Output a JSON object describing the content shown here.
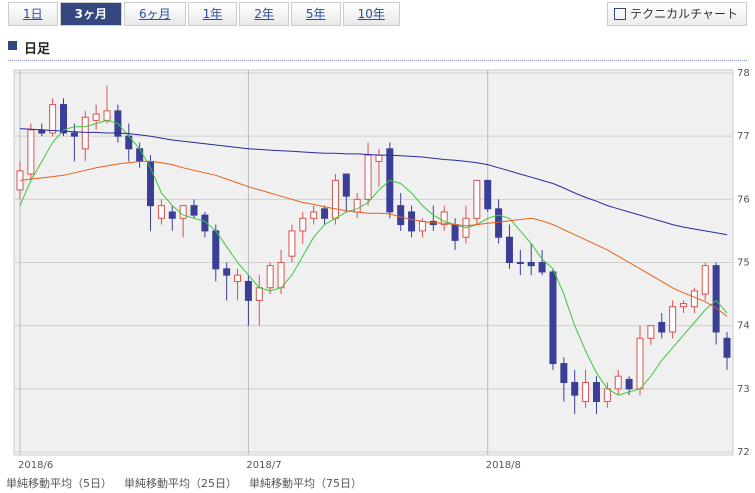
{
  "tabs": [
    "1日",
    "3ヶ月",
    "6ヶ月",
    "1年",
    "2年",
    "5年",
    "10年"
  ],
  "selected_tab": 1,
  "button": "テクニカルチャート",
  "heading": "日足",
  "chart_data": {
    "type": "candlestick",
    "categories": [
      "2018/6",
      null,
      null,
      null,
      null,
      null,
      null,
      null,
      null,
      null,
      null,
      null,
      null,
      null,
      null,
      null,
      null,
      null,
      null,
      null,
      null,
      "2018/7",
      null,
      null,
      null,
      null,
      null,
      null,
      null,
      null,
      null,
      null,
      null,
      null,
      null,
      null,
      null,
      null,
      null,
      null,
      null,
      null,
      null,
      "2018/8",
      null,
      null,
      null,
      null,
      null,
      null,
      null,
      null,
      null,
      null,
      null,
      null,
      null,
      null,
      null,
      null,
      null,
      null,
      null,
      null,
      null,
      null
    ],
    "open": [
      76.15,
      76.4,
      77.1,
      77.05,
      77.5,
      77.05,
      76.8,
      77.25,
      77.25,
      77.4,
      77.0,
      76.8,
      76.6,
      75.7,
      75.8,
      75.7,
      75.9,
      75.75,
      75.5,
      74.9,
      74.7,
      74.7,
      74.4,
      74.6,
      74.6,
      75.1,
      75.5,
      75.7,
      75.85,
      75.7,
      76.4,
      75.8,
      76.0,
      76.6,
      76.8,
      75.9,
      75.8,
      75.5,
      75.65,
      75.6,
      75.6,
      75.4,
      75.7,
      76.3,
      75.85,
      75.4,
      75.0,
      75.0,
      75.0,
      74.85,
      73.4,
      73.1,
      72.8,
      73.1,
      72.8,
      73.0,
      73.15,
      73.0,
      73.8,
      74.05,
      73.9,
      74.3,
      74.3,
      74.5,
      74.95,
      73.8
    ],
    "high": [
      76.6,
      77.2,
      77.2,
      77.6,
      77.6,
      77.2,
      77.4,
      77.5,
      77.8,
      77.5,
      77.2,
      76.9,
      76.7,
      76.0,
      75.9,
      75.9,
      76.0,
      75.8,
      75.6,
      75.0,
      74.9,
      74.8,
      74.8,
      75.0,
      75.2,
      75.6,
      75.8,
      75.9,
      75.9,
      76.4,
      76.4,
      76.1,
      76.9,
      76.8,
      76.9,
      76.1,
      75.9,
      75.7,
      75.9,
      75.9,
      75.7,
      75.9,
      76.3,
      76.3,
      76.0,
      75.6,
      75.2,
      75.3,
      75.2,
      74.9,
      73.5,
      73.3,
      73.3,
      73.2,
      73.1,
      73.3,
      73.2,
      74.0,
      74.0,
      74.2,
      74.4,
      74.4,
      74.6,
      75.0,
      75.0,
      73.9
    ],
    "low": [
      76.0,
      76.3,
      77.0,
      77.0,
      77.0,
      76.6,
      76.6,
      77.1,
      77.2,
      76.9,
      76.6,
      76.5,
      75.5,
      75.6,
      75.5,
      75.4,
      75.7,
      75.4,
      74.7,
      74.4,
      74.4,
      74.0,
      74.0,
      74.5,
      74.5,
      75.0,
      75.3,
      75.6,
      75.6,
      75.6,
      75.8,
      75.7,
      75.9,
      76.2,
      75.7,
      75.5,
      75.4,
      75.4,
      75.5,
      75.5,
      75.2,
      75.3,
      75.6,
      75.8,
      75.3,
      74.9,
      74.8,
      74.8,
      74.8,
      73.3,
      72.8,
      72.6,
      72.7,
      72.6,
      72.7,
      72.9,
      72.9,
      72.9,
      73.7,
      73.8,
      73.8,
      74.2,
      74.2,
      74.4,
      73.7,
      73.3
    ],
    "close": [
      76.45,
      77.1,
      77.05,
      77.5,
      77.05,
      77.0,
      77.3,
      77.35,
      77.4,
      77.0,
      76.8,
      76.6,
      75.9,
      75.9,
      75.7,
      75.9,
      75.75,
      75.5,
      74.9,
      74.8,
      74.8,
      74.4,
      74.6,
      74.95,
      75.0,
      75.5,
      75.7,
      75.8,
      75.7,
      76.3,
      76.05,
      76.0,
      76.7,
      76.7,
      75.8,
      75.6,
      75.5,
      75.65,
      75.6,
      75.8,
      75.35,
      75.7,
      76.3,
      75.85,
      75.4,
      75.0,
      75.0,
      74.95,
      74.85,
      73.4,
      73.1,
      72.9,
      73.1,
      72.8,
      73.0,
      73.2,
      73.0,
      73.8,
      74.0,
      73.9,
      74.3,
      74.35,
      74.55,
      74.95,
      73.9,
      73.5
    ],
    "up_color": "#d9534f",
    "down_color": "#3a3f95",
    "series": [
      {
        "name": "単純移動平均（5日）",
        "color": "#3cc83c",
        "values": [
          75.9,
          76.3,
          76.6,
          76.9,
          77.1,
          77.15,
          77.15,
          77.2,
          77.25,
          77.2,
          77.0,
          76.8,
          76.5,
          76.1,
          75.9,
          75.75,
          75.7,
          75.65,
          75.5,
          75.25,
          75.0,
          74.8,
          74.6,
          74.55,
          74.6,
          74.8,
          75.1,
          75.4,
          75.6,
          75.7,
          75.8,
          75.85,
          75.95,
          76.15,
          76.3,
          76.25,
          76.1,
          75.9,
          75.75,
          75.65,
          75.6,
          75.55,
          75.6,
          75.7,
          75.75,
          75.7,
          75.5,
          75.3,
          75.05,
          74.9,
          74.5,
          74.0,
          73.6,
          73.25,
          73.0,
          72.9,
          72.95,
          73.0,
          73.2,
          73.45,
          73.65,
          73.85,
          74.05,
          74.25,
          74.4,
          74.2
        ]
      },
      {
        "name": "単純移動平均（25日）",
        "color": "#e8601c",
        "values": [
          76.3,
          76.32,
          76.34,
          76.36,
          76.38,
          76.42,
          76.46,
          76.5,
          76.53,
          76.56,
          76.58,
          76.6,
          76.6,
          76.58,
          76.55,
          76.5,
          76.46,
          76.42,
          76.38,
          76.32,
          76.26,
          76.2,
          76.15,
          76.1,
          76.05,
          76.0,
          75.95,
          75.92,
          75.88,
          75.85,
          75.82,
          75.8,
          75.78,
          75.78,
          75.77,
          75.72,
          75.68,
          75.65,
          75.63,
          75.62,
          75.6,
          75.58,
          75.6,
          75.62,
          75.64,
          75.66,
          75.68,
          75.7,
          75.66,
          75.6,
          75.52,
          75.44,
          75.36,
          75.28,
          75.2,
          75.1,
          75.0,
          74.9,
          74.8,
          74.7,
          74.6,
          74.52,
          74.45,
          74.38,
          74.28,
          74.15
        ]
      },
      {
        "name": "単純移動平均（75日）",
        "color": "#2a2aa0",
        "values": [
          77.12,
          77.11,
          77.1,
          77.09,
          77.08,
          77.07,
          77.06,
          77.06,
          77.05,
          77.05,
          77.04,
          77.02,
          77.0,
          76.97,
          76.94,
          76.92,
          76.9,
          76.88,
          76.86,
          76.84,
          76.82,
          76.8,
          76.79,
          76.78,
          76.77,
          76.76,
          76.75,
          76.74,
          76.73,
          76.73,
          76.72,
          76.72,
          76.71,
          76.7,
          76.7,
          76.69,
          76.68,
          76.67,
          76.65,
          76.63,
          76.62,
          76.6,
          76.58,
          76.55,
          76.5,
          76.45,
          76.4,
          76.35,
          76.3,
          76.25,
          76.18,
          76.1,
          76.03,
          75.97,
          75.9,
          75.85,
          75.8,
          75.75,
          75.7,
          75.65,
          75.6,
          75.56,
          75.53,
          75.5,
          75.47,
          75.44
        ]
      }
    ],
    "ylim": [
      72,
      78
    ],
    "yticks": [
      72,
      73,
      74,
      75,
      76,
      77,
      78
    ],
    "grid": true
  }
}
